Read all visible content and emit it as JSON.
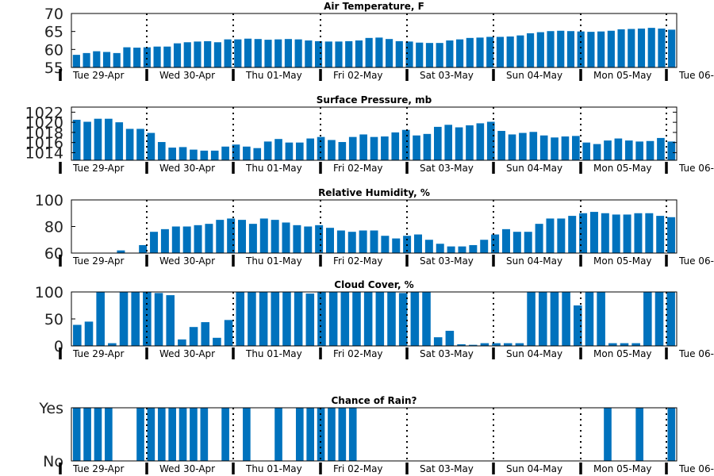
{
  "chart_data": [
    {
      "type": "bar",
      "title": "Air Temperature, F",
      "ylim": [
        55,
        70
      ],
      "yticks": [
        "55",
        "60",
        "65",
        "70"
      ],
      "xticks": [
        "Tue 29-Apr",
        "Wed 30-Apr",
        "Thu 01-May",
        "Fri 02-May",
        "Sat 03-May",
        "Sun 04-May",
        "Mon 05-May",
        "Tue 06-"
      ],
      "values": [
        58.5,
        59,
        59.5,
        59.3,
        59,
        60.6,
        60.5,
        60.6,
        60.8,
        60.8,
        61.7,
        62,
        62.2,
        62.3,
        62,
        62.8,
        62.8,
        63,
        62.9,
        62.7,
        62.8,
        62.9,
        62.8,
        62.5,
        62.3,
        62.2,
        62.2,
        62.3,
        62.5,
        63.2,
        63.3,
        62.9,
        62.3,
        62.2,
        61.9,
        61.8,
        61.8,
        62.5,
        62.8,
        63.2,
        63.3,
        63.5,
        63.5,
        63.6,
        63.9,
        64.5,
        64.8,
        65.1,
        65.2,
        65.1,
        65,
        64.9,
        65,
        65.2,
        65.6,
        65.7,
        65.8,
        66,
        65.8,
        65.5
      ]
    },
    {
      "type": "bar",
      "title": "Surface Pressure, mb",
      "ylim": [
        1012.5,
        1023
      ],
      "yticks": [
        "1014",
        "1016",
        "1018",
        "1020",
        "1022"
      ],
      "right_axis_ticks": true,
      "xticks": [
        "Tue 29-Apr",
        "Wed 30-Apr",
        "Thu 01-May",
        "Fri 02-May",
        "Sat 03-May",
        "Sun 04-May",
        "Mon 05-May",
        "Tue 06-"
      ],
      "values": [
        1020.5,
        1020.1,
        1020.7,
        1020.7,
        1020,
        1018.7,
        1018.7,
        1017.9,
        1016.1,
        1015,
        1015.1,
        1014.6,
        1014.4,
        1014.4,
        1015.2,
        1015.6,
        1015.2,
        1014.9,
        1016.2,
        1016.7,
        1016,
        1016,
        1016.8,
        1017.1,
        1016.5,
        1016.1,
        1017.1,
        1017.6,
        1017.1,
        1017.2,
        1018,
        1018.5,
        1017.4,
        1017.7,
        1019.1,
        1019.5,
        1019,
        1019.4,
        1019.8,
        1020.1,
        1018.3,
        1017.6,
        1017.9,
        1018.1,
        1017.4,
        1017,
        1017.2,
        1017.3,
        1016,
        1015.7,
        1016.4,
        1016.8,
        1016.4,
        1016.2,
        1016.3,
        1016.9,
        1016.2
      ]
    },
    {
      "type": "bar",
      "title": "Relative Humidity, %",
      "ylim": [
        60,
        100
      ],
      "yticks": [
        "60",
        "80",
        "100"
      ],
      "xticks": [
        "Tue 29-Apr",
        "Wed 30-Apr",
        "Thu 01-May",
        "Fri 02-May",
        "Sat 03-May",
        "Sun 04-May",
        "Mon 05-May",
        "Tue 06-"
      ],
      "values": [
        null,
        null,
        null,
        null,
        62,
        null,
        66,
        76,
        78,
        80,
        80,
        81,
        82,
        85,
        86,
        85,
        82,
        86,
        85,
        83,
        81,
        80,
        81,
        79,
        77,
        76,
        77,
        77,
        73,
        71,
        73,
        74,
        70,
        67,
        65,
        65,
        66,
        70,
        74,
        78,
        76,
        76,
        82,
        86,
        86,
        88,
        90,
        91,
        90,
        89,
        89,
        90,
        90,
        88,
        87
      ]
    },
    {
      "type": "bar",
      "title": "Cloud Cover, %",
      "ylim": [
        0,
        100
      ],
      "yticks": [
        "0",
        "50",
        "100"
      ],
      "xticks": [
        "Tue 29-Apr",
        "Wed 30-Apr",
        "Thu 01-May",
        "Fri 02-May",
        "Sat 03-May",
        "Sun 04-May",
        "Mon 05-May",
        "Tue 06-"
      ],
      "values": [
        39,
        45,
        100,
        5,
        100,
        100,
        100,
        98,
        94,
        12,
        35,
        44,
        15,
        48,
        100,
        100,
        100,
        100,
        100,
        100,
        97,
        100,
        100,
        100,
        100,
        100,
        100,
        100,
        98,
        100,
        100,
        16,
        28,
        3,
        2,
        5,
        5,
        5,
        5,
        100,
        100,
        100,
        100,
        75,
        100,
        100,
        5,
        5,
        5,
        100,
        100,
        100
      ]
    },
    {
      "type": "bar",
      "title": "Chance of Rain?",
      "ylim": [
        0,
        1
      ],
      "yticks": [
        "No",
        "Yes"
      ],
      "xticks": [
        "Tue 29-Apr",
        "Wed 30-Apr",
        "Thu 01-May",
        "Fri 02-May",
        "Sat 03-May",
        "Sun 04-May",
        "Mon 05-May",
        "Tue 06-"
      ],
      "values": [
        1,
        1,
        1,
        1,
        0,
        0,
        1,
        1,
        1,
        1,
        1,
        1,
        1,
        0,
        1,
        0,
        1,
        0,
        0,
        1,
        0,
        1,
        1,
        1,
        1,
        1,
        1,
        0,
        0,
        0,
        0,
        0,
        0,
        0,
        0,
        0,
        0,
        0,
        0,
        0,
        0,
        0,
        0,
        0,
        0,
        0,
        0,
        0,
        0,
        0,
        1,
        0,
        0,
        1,
        0,
        0,
        1
      ]
    }
  ]
}
